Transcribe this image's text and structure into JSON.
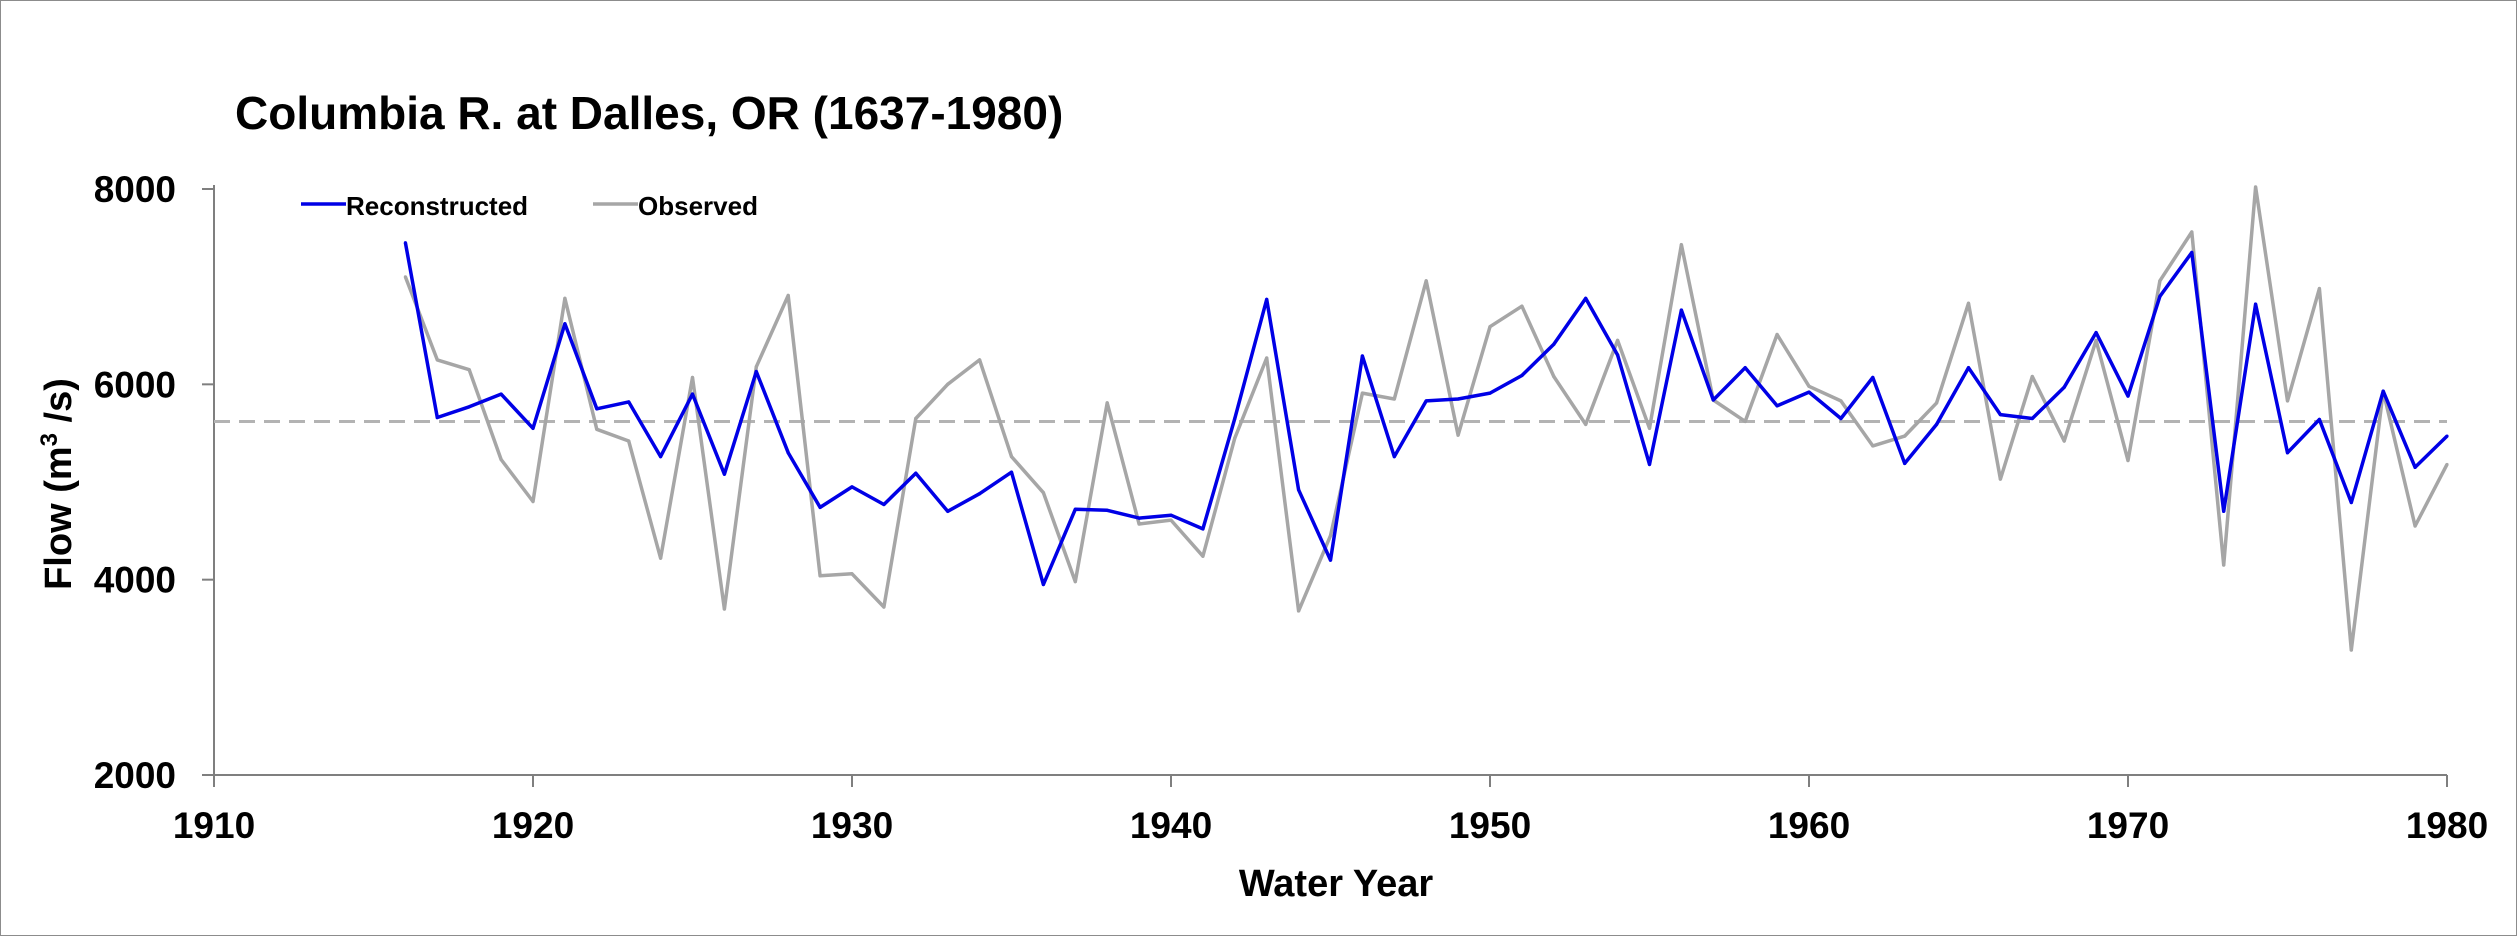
{
  "chart_data": {
    "type": "line",
    "title": "Columbia R. at Dalles, OR (1637-1980)",
    "xlabel": "Water Year",
    "ylabel_main": "Flow (m",
    "ylabel_sup": "3",
    "ylabel_tail": " /s)",
    "xlim": [
      1910,
      1980
    ],
    "ylim": [
      2000,
      8000
    ],
    "xticks": [
      1910,
      1920,
      1930,
      1940,
      1950,
      1960,
      1970,
      1980
    ],
    "yticks": [
      2000,
      4000,
      6000,
      8000
    ],
    "grid": false,
    "legend_position": "top-left",
    "mean_line": {
      "value": 5620,
      "style": "dashed",
      "color": "#b3b3b3"
    },
    "series": [
      {
        "name": "Reconstructed",
        "color": "#0000e6",
        "x": [
          1916,
          1917,
          1918,
          1919,
          1920,
          1921,
          1922,
          1923,
          1924,
          1925,
          1926,
          1927,
          1928,
          1929,
          1930,
          1931,
          1932,
          1933,
          1934,
          1935,
          1936,
          1937,
          1938,
          1939,
          1940,
          1941,
          1942,
          1943,
          1944,
          1945,
          1946,
          1947,
          1948,
          1949,
          1950,
          1951,
          1952,
          1953,
          1954,
          1955,
          1956,
          1957,
          1958,
          1959,
          1960,
          1961,
          1962,
          1963,
          1964,
          1965,
          1966,
          1967,
          1968,
          1969,
          1970,
          1971,
          1972,
          1973,
          1974,
          1975,
          1976,
          1977,
          1978,
          1979,
          1980
        ],
        "values": [
          7450,
          5660,
          5770,
          5900,
          5550,
          6620,
          5750,
          5820,
          5260,
          5900,
          5080,
          6130,
          5300,
          4740,
          4950,
          4770,
          5090,
          4700,
          4880,
          5100,
          3950,
          4720,
          4710,
          4630,
          4660,
          4520,
          5650,
          6870,
          4920,
          4200,
          6290,
          5260,
          5830,
          5850,
          5910,
          6090,
          6410,
          6880,
          6300,
          5180,
          6760,
          5840,
          6170,
          5780,
          5920,
          5650,
          6070,
          5190,
          5590,
          6170,
          5690,
          5650,
          5970,
          6530,
          5880,
          6900,
          7350,
          4700,
          6820,
          5300,
          5640,
          4790,
          5930,
          5150,
          5470
        ]
      },
      {
        "name": "Observed",
        "color": "#a6a6a6",
        "x": [
          1916,
          1917,
          1918,
          1919,
          1920,
          1921,
          1922,
          1923,
          1924,
          1925,
          1926,
          1927,
          1928,
          1929,
          1930,
          1931,
          1932,
          1933,
          1934,
          1935,
          1936,
          1937,
          1938,
          1939,
          1940,
          1941,
          1942,
          1943,
          1944,
          1945,
          1946,
          1947,
          1948,
          1949,
          1950,
          1951,
          1952,
          1953,
          1954,
          1955,
          1956,
          1957,
          1958,
          1959,
          1960,
          1961,
          1962,
          1963,
          1964,
          1965,
          1966,
          1967,
          1968,
          1969,
          1970,
          1971,
          1972,
          1973,
          1974,
          1975,
          1976,
          1977,
          1978,
          1979,
          1980
        ],
        "values": [
          7100,
          6250,
          6150,
          5230,
          4800,
          6880,
          5540,
          5420,
          4220,
          6070,
          3700,
          6180,
          6910,
          4040,
          4060,
          3720,
          5650,
          6000,
          6250,
          5260,
          4890,
          3980,
          5810,
          4570,
          4610,
          4240,
          5450,
          6270,
          3680,
          4450,
          5910,
          5850,
          7060,
          5480,
          6590,
          6800,
          6080,
          5590,
          6450,
          5550,
          7430,
          5840,
          5620,
          6510,
          5980,
          5830,
          5370,
          5470,
          5810,
          6830,
          5030,
          6080,
          5420,
          6450,
          5220,
          7060,
          7560,
          4150,
          8020,
          5830,
          6980,
          3280,
          5930,
          4550,
          5180
        ]
      }
    ]
  }
}
